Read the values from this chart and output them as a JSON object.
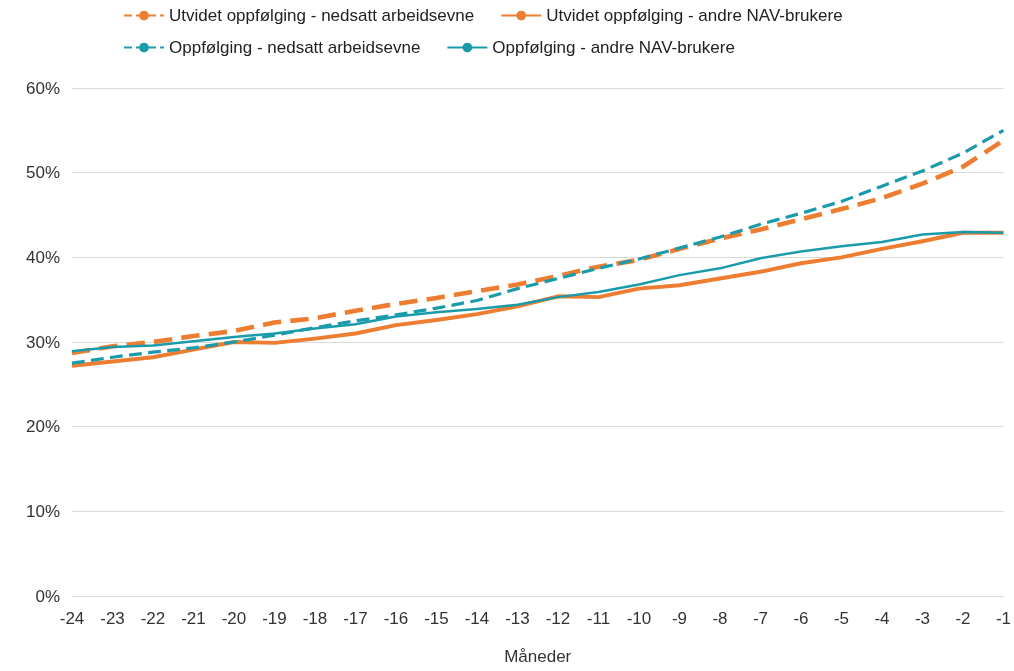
{
  "chart_data": {
    "type": "line",
    "xlabel": "Måneder",
    "categories": [
      "-24",
      "-23",
      "-22",
      "-21",
      "-20",
      "-19",
      "-18",
      "-17",
      "-16",
      "-15",
      "-14",
      "-13",
      "-12",
      "-11",
      "-10",
      "-9",
      "-8",
      "-7",
      "-6",
      "-5",
      "-4",
      "-3",
      "-2",
      "-1"
    ],
    "series": [
      {
        "name": "Utvidet oppfølging - nedsatt arbeidsevne",
        "color": "#ed7d31",
        "line_style": "dashed",
        "values": [
          28.7,
          29.5,
          30.0,
          30.7,
          31.3,
          32.3,
          32.8,
          33.7,
          34.5,
          35.2,
          36.0,
          36.8,
          37.8,
          38.9,
          39.7,
          41.0,
          42.2,
          43.3,
          44.5,
          45.7,
          47.0,
          48.7,
          50.7,
          53.8
        ]
      },
      {
        "name": "Utvidet oppfølging - andre NAV-brukere",
        "color": "#ed7d31",
        "line_style": "solid",
        "values": [
          27.2,
          27.7,
          28.2,
          29.1,
          30.0,
          29.9,
          30.4,
          31.0,
          32.0,
          32.6,
          33.3,
          34.2,
          35.4,
          35.3,
          36.3,
          36.7,
          37.5,
          38.3,
          39.3,
          40.0,
          41.0,
          41.9,
          42.9,
          42.9
        ]
      },
      {
        "name": "Oppfølging - nedsatt arbeidsevne",
        "color": "#1a9baa",
        "line_style": "dashed",
        "values": [
          27.5,
          28.2,
          28.8,
          29.3,
          30.0,
          30.8,
          31.7,
          32.5,
          33.2,
          34.0,
          34.9,
          36.3,
          37.5,
          38.7,
          39.8,
          41.1,
          42.4,
          43.9,
          45.2,
          46.6,
          48.4,
          50.2,
          52.3,
          55.0
        ]
      },
      {
        "name": "Oppfølging - andre NAV-brukere",
        "color": "#1a9baa",
        "line_style": "solid",
        "values": [
          28.9,
          29.4,
          29.6,
          30.1,
          30.6,
          31.0,
          31.6,
          32.1,
          33.0,
          33.5,
          33.9,
          34.4,
          35.3,
          35.9,
          36.8,
          37.9,
          38.7,
          39.9,
          40.7,
          41.3,
          41.8,
          42.7,
          43.0,
          42.9
        ]
      }
    ],
    "ylim": [
      0,
      60
    ],
    "yticks": [
      {
        "value": 0,
        "label": "0%"
      },
      {
        "value": 10,
        "label": "10%"
      },
      {
        "value": 20,
        "label": "20%"
      },
      {
        "value": 30,
        "label": "30%"
      },
      {
        "value": 40,
        "label": "40%"
      },
      {
        "value": 50,
        "label": "50%"
      },
      {
        "value": 60,
        "label": "60%"
      }
    ],
    "grid": "y",
    "legend": "top",
    "marker": "none"
  }
}
